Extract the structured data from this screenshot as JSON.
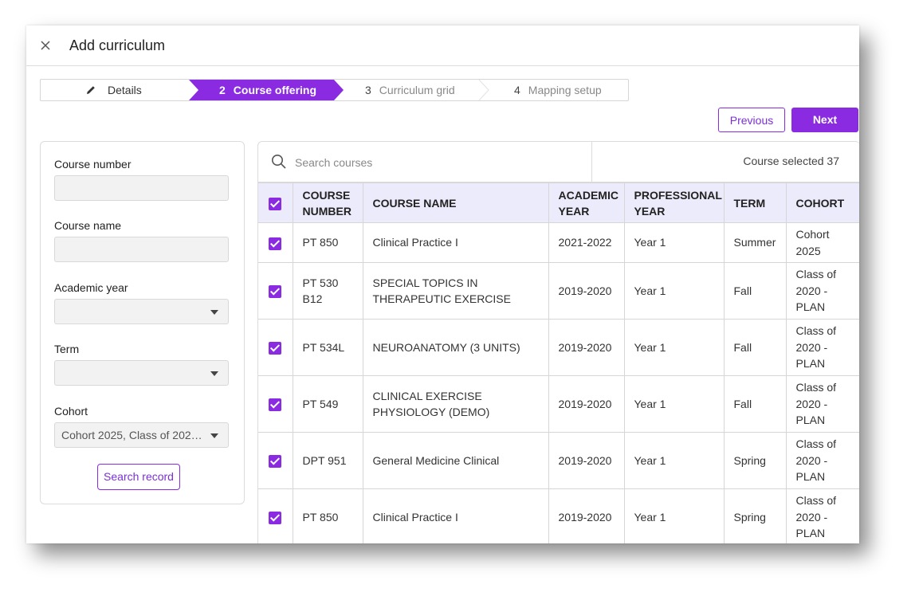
{
  "window": {
    "title": "Add curriculum"
  },
  "stepper": {
    "steps": [
      {
        "num": "",
        "label": "Details"
      },
      {
        "num": "2",
        "label": "Course offering"
      },
      {
        "num": "3",
        "label": "Curriculum grid"
      },
      {
        "num": "4",
        "label": "Mapping setup"
      }
    ],
    "active_color": "#8a2be2"
  },
  "actions": {
    "previous": "Previous",
    "next": "Next"
  },
  "filters": {
    "course_number_label": "Course number",
    "course_number_value": "",
    "course_name_label": "Course name",
    "course_name_value": "",
    "academic_year_label": "Academic year",
    "academic_year_value": "",
    "term_label": "Term",
    "term_value": "",
    "cohort_label": "Cohort",
    "cohort_value": "Cohort 2025, Class of 2020 ...",
    "search_button": "Search record"
  },
  "search": {
    "placeholder": "Search courses",
    "selected_text": "Course selected 37"
  },
  "table": {
    "headers": [
      "COURSE NUMBER",
      "COURSE NAME",
      "ACADEMIC YEAR",
      "PROFESSIONAL YEAR",
      "TERM",
      "COHORT"
    ],
    "rows": [
      {
        "checked": true,
        "number": "PT 850",
        "name": "Clinical Practice I",
        "year": "2021-2022",
        "prof": "Year 1",
        "term": "Summer",
        "cohort": "Cohort 2025"
      },
      {
        "checked": true,
        "number": "PT 530 B12",
        "name": "SPECIAL TOPICS  IN THERAPEUTIC EXERCISE",
        "year": "2019-2020",
        "prof": "Year 1",
        "term": "Fall",
        "cohort": "Class of 2020 - PLAN"
      },
      {
        "checked": true,
        "number": "PT 534L",
        "name": "NEUROANATOMY (3 UNITS)",
        "year": "2019-2020",
        "prof": "Year 1",
        "term": "Fall",
        "cohort": "Class of 2020 - PLAN"
      },
      {
        "checked": true,
        "number": "PT 549",
        "name": "CLINICAL EXERCISE PHYSIOLOGY (DEMO)",
        "year": "2019-2020",
        "prof": "Year 1",
        "term": "Fall",
        "cohort": "Class of 2020 - PLAN"
      },
      {
        "checked": true,
        "number": "DPT 951",
        "name": "General Medicine Clinical",
        "year": "2019-2020",
        "prof": "Year 1",
        "term": "Spring",
        "cohort": "Class of 2020 - PLAN"
      },
      {
        "checked": true,
        "number": "PT 850",
        "name": "Clinical Practice I",
        "year": "2019-2020",
        "prof": "Year 1",
        "term": "Spring",
        "cohort": "Class of 2020 - PLAN"
      }
    ]
  }
}
